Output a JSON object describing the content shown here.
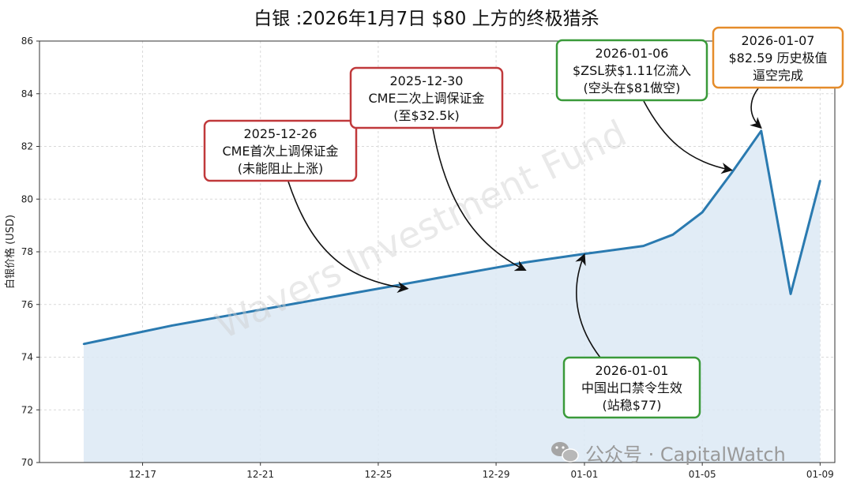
{
  "chart_data": {
    "type": "area",
    "title": "白银 :2026年1月7日 $80 上方的终极猎杀",
    "ylabel": "白银价格 (USD)",
    "xlabel": "",
    "ylim": [
      70,
      86
    ],
    "yticks": [
      70,
      72,
      74,
      76,
      78,
      80,
      82,
      84,
      86
    ],
    "x_start": "2025-12-15",
    "xlim": [
      -1.5,
      25.5
    ],
    "xticks": [
      {
        "label": "12-17",
        "day": 2
      },
      {
        "label": "12-21",
        "day": 6
      },
      {
        "label": "12-25",
        "day": 10
      },
      {
        "label": "12-29",
        "day": 14
      },
      {
        "label": "01-01",
        "day": 17
      },
      {
        "label": "01-05",
        "day": 21
      },
      {
        "label": "01-09",
        "day": 25
      }
    ],
    "grid": true,
    "series": [
      {
        "color": "#2a7ab0",
        "fill": "#dce9f5",
        "points": [
          {
            "day": 0,
            "value": 74.5
          },
          {
            "day": 3,
            "value": 75.2
          },
          {
            "day": 6,
            "value": 75.8
          },
          {
            "day": 9,
            "value": 76.4
          },
          {
            "day": 12,
            "value": 77.0
          },
          {
            "day": 15,
            "value": 77.6
          },
          {
            "day": 17,
            "value": 77.92
          },
          {
            "day": 19,
            "value": 78.22
          },
          {
            "day": 20,
            "value": 78.65
          },
          {
            "day": 21,
            "value": 79.5
          },
          {
            "day": 22,
            "value": 81.0
          },
          {
            "day": 23,
            "value": 82.59
          },
          {
            "day": 24,
            "value": 76.4
          },
          {
            "day": 25,
            "value": 80.7
          }
        ]
      }
    ],
    "annotations": [
      {
        "lines": [
          "2025-12-26",
          "CME首次上调保证金",
          "(未能阻止上涨)"
        ],
        "border": "#c0393b",
        "arrow_to": {
          "day": 11,
          "value": 76.6
        }
      },
      {
        "lines": [
          "2025-12-30",
          "CME二次上调保证金",
          "(至$32.5k)"
        ],
        "border": "#c0393b",
        "arrow_to": {
          "day": 15,
          "value": 77.3
        }
      },
      {
        "lines": [
          "2026-01-01",
          "中国出口禁令生效",
          "(站稳$77)"
        ],
        "border": "#3a9a3a",
        "arrow_to": {
          "day": 17,
          "value": 77.9
        }
      },
      {
        "lines": [
          "2026-01-06",
          "$ZSL获$1.11亿流入",
          "(空头在$81做空)"
        ],
        "border": "#3a9a3a",
        "arrow_to": {
          "day": 22,
          "value": 81.1
        }
      },
      {
        "lines": [
          "2026-01-07",
          "$82.59 历史极值",
          "逼空完成"
        ],
        "border": "#e58c2a",
        "arrow_to": {
          "day": 23,
          "value": 82.7
        }
      }
    ],
    "watermark": "Wavers Investment Fund",
    "source_mark": "公众号 · CapitalWatch"
  }
}
